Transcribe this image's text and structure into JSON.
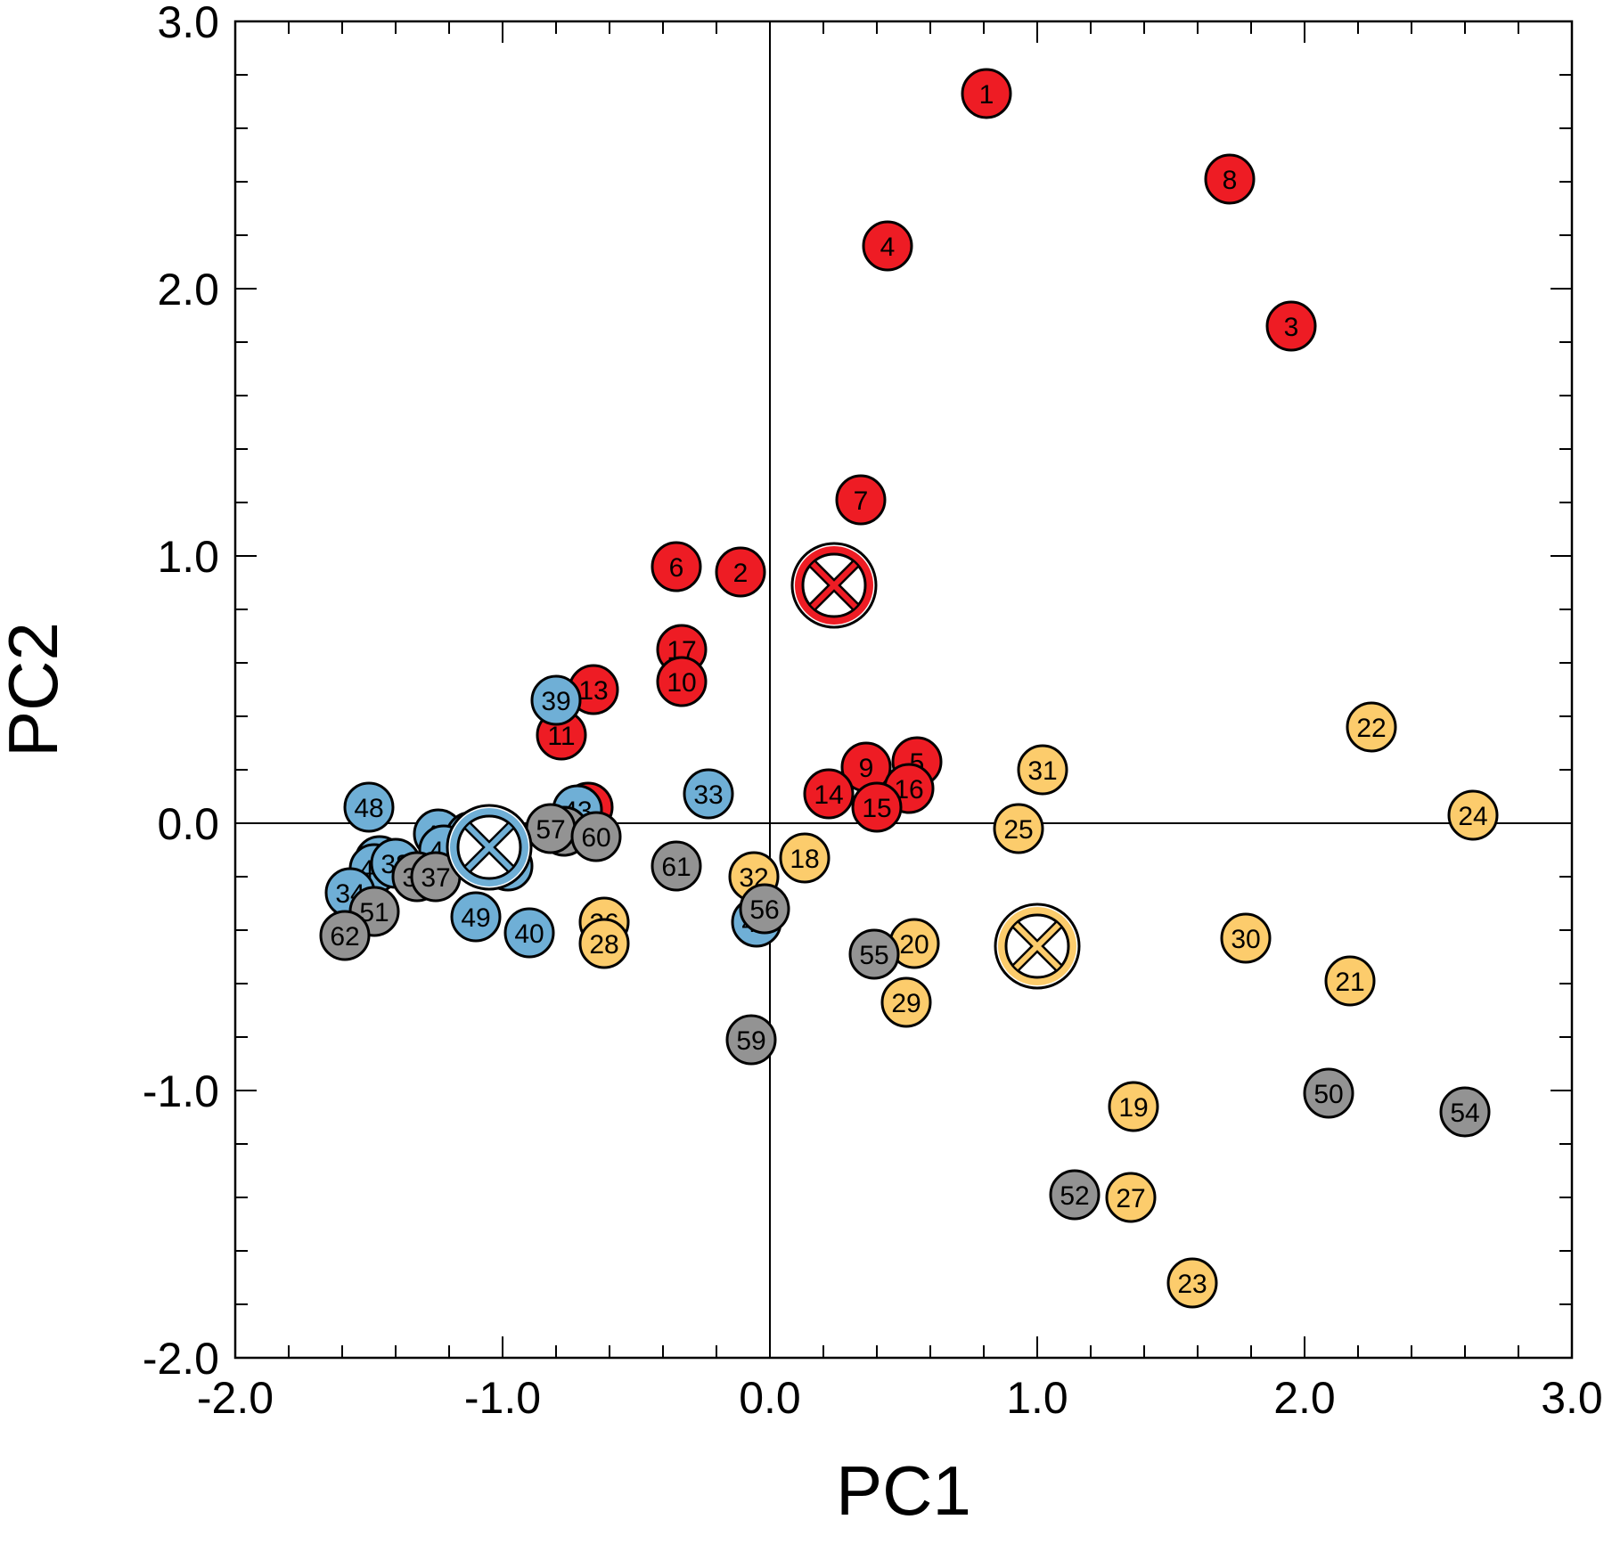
{
  "chart_data": {
    "type": "scatter",
    "title": "",
    "xlabel": "PC1",
    "ylabel": "PC2",
    "xlim": [
      -2.0,
      3.0
    ],
    "ylim": [
      -2.0,
      3.0
    ],
    "x_ticks": [
      -2.0,
      -1.0,
      0.0,
      1.0,
      2.0,
      3.0
    ],
    "y_ticks": [
      -2.0,
      -1.0,
      0.0,
      1.0,
      2.0,
      3.0
    ],
    "x_tick_labels": [
      "-2.0",
      "-1.0",
      "0.0",
      "1.0",
      "2.0",
      "3.0"
    ],
    "y_tick_labels": [
      "-2.0",
      "-1.0",
      "0.0",
      "1.0",
      "2.0",
      "3.0"
    ],
    "minor_tick_step": 0.2,
    "grid": false,
    "reference_lines": {
      "x": 0.0,
      "y": 0.0
    },
    "colors": {
      "red": "#ee1c24",
      "blue": "#6fafd6",
      "orange": "#fccc6c",
      "gray": "#939393",
      "outline": "#000000"
    },
    "series": [
      {
        "color": "#ee1c24",
        "centroid": [
          0.24,
          0.89
        ],
        "points": [
          {
            "label": "1",
            "x": 0.81,
            "y": 2.73
          },
          {
            "label": "8",
            "x": 1.72,
            "y": 2.41
          },
          {
            "label": "4",
            "x": 0.44,
            "y": 2.16
          },
          {
            "label": "3",
            "x": 1.95,
            "y": 1.86
          },
          {
            "label": "7",
            "x": 0.34,
            "y": 1.21
          },
          {
            "label": "6",
            "x": -0.35,
            "y": 0.96
          },
          {
            "label": "2",
            "x": -0.11,
            "y": 0.94
          },
          {
            "label": "17",
            "x": -0.33,
            "y": 0.65
          },
          {
            "label": "13",
            "x": -0.66,
            "y": 0.5
          },
          {
            "label": "10",
            "x": -0.33,
            "y": 0.53
          },
          {
            "label": "11",
            "x": -0.78,
            "y": 0.33
          },
          {
            "label": "9",
            "x": 0.36,
            "y": 0.21
          },
          {
            "label": "5",
            "x": 0.55,
            "y": 0.23
          },
          {
            "label": "16",
            "x": 0.52,
            "y": 0.13
          },
          {
            "label": "14",
            "x": 0.22,
            "y": 0.11
          },
          {
            "label": "15",
            "x": 0.4,
            "y": 0.06
          },
          {
            "label": "12",
            "x": -0.68,
            "y": 0.06
          }
        ]
      },
      {
        "color": "#6fafd6",
        "centroid": [
          -1.05,
          -0.09
        ],
        "points": [
          {
            "label": "39",
            "x": -0.8,
            "y": 0.46
          },
          {
            "label": "33",
            "x": -0.23,
            "y": 0.11
          },
          {
            "label": "48",
            "x": -1.5,
            "y": 0.06
          },
          {
            "label": "43",
            "x": -0.72,
            "y": 0.05
          },
          {
            "label": "46",
            "x": -1.24,
            "y": -0.04
          },
          {
            "label": "47",
            "x": -1.12,
            "y": -0.05
          },
          {
            "label": "45",
            "x": -0.98,
            "y": -0.16
          },
          {
            "label": "36",
            "x": -1.46,
            "y": -0.14
          },
          {
            "label": "42",
            "x": -1.48,
            "y": -0.17
          },
          {
            "label": "41",
            "x": -1.22,
            "y": -0.1
          },
          {
            "label": "34",
            "x": -1.57,
            "y": -0.26
          },
          {
            "label": "49",
            "x": -1.1,
            "y": -0.35
          },
          {
            "label": "40",
            "x": -0.9,
            "y": -0.41
          },
          {
            "label": "44",
            "x": -0.05,
            "y": -0.37
          },
          {
            "label": "38",
            "x": -1.4,
            "y": -0.15
          }
        ]
      },
      {
        "color": "#fccc6c",
        "centroid": [
          1.0,
          -0.46
        ],
        "points": [
          {
            "label": "22",
            "x": 2.25,
            "y": 0.36
          },
          {
            "label": "31",
            "x": 1.02,
            "y": 0.2
          },
          {
            "label": "24",
            "x": 2.63,
            "y": 0.03
          },
          {
            "label": "25",
            "x": 0.93,
            "y": -0.02
          },
          {
            "label": "18",
            "x": 0.13,
            "y": -0.13
          },
          {
            "label": "32",
            "x": -0.06,
            "y": -0.2
          },
          {
            "label": "26",
            "x": -0.62,
            "y": -0.37
          },
          {
            "label": "28",
            "x": -0.62,
            "y": -0.45
          },
          {
            "label": "20",
            "x": 0.54,
            "y": -0.45
          },
          {
            "label": "30",
            "x": 1.78,
            "y": -0.43
          },
          {
            "label": "21",
            "x": 2.17,
            "y": -0.59
          },
          {
            "label": "29",
            "x": 0.51,
            "y": -0.67
          },
          {
            "label": "19",
            "x": 1.36,
            "y": -1.06
          },
          {
            "label": "27",
            "x": 1.35,
            "y": -1.4
          },
          {
            "label": "23",
            "x": 1.58,
            "y": -1.72
          }
        ]
      },
      {
        "color": "#939393",
        "centroid": null,
        "points": [
          {
            "label": "58",
            "x": -0.77,
            "y": -0.03
          },
          {
            "label": "57",
            "x": -0.82,
            "y": -0.02
          },
          {
            "label": "60",
            "x": -0.65,
            "y": -0.05
          },
          {
            "label": "61",
            "x": -0.35,
            "y": -0.16
          },
          {
            "label": "35",
            "x": -1.32,
            "y": -0.2
          },
          {
            "label": "37",
            "x": -1.25,
            "y": -0.2
          },
          {
            "label": "51",
            "x": -1.48,
            "y": -0.33
          },
          {
            "label": "62",
            "x": -1.59,
            "y": -0.42
          },
          {
            "label": "56",
            "x": -0.02,
            "y": -0.32
          },
          {
            "label": "55",
            "x": 0.39,
            "y": -0.49
          },
          {
            "label": "59",
            "x": -0.07,
            "y": -0.81
          },
          {
            "label": "50",
            "x": 2.09,
            "y": -1.01
          },
          {
            "label": "54",
            "x": 2.6,
            "y": -1.08
          },
          {
            "label": "52",
            "x": 1.14,
            "y": -1.39
          }
        ]
      }
    ]
  }
}
